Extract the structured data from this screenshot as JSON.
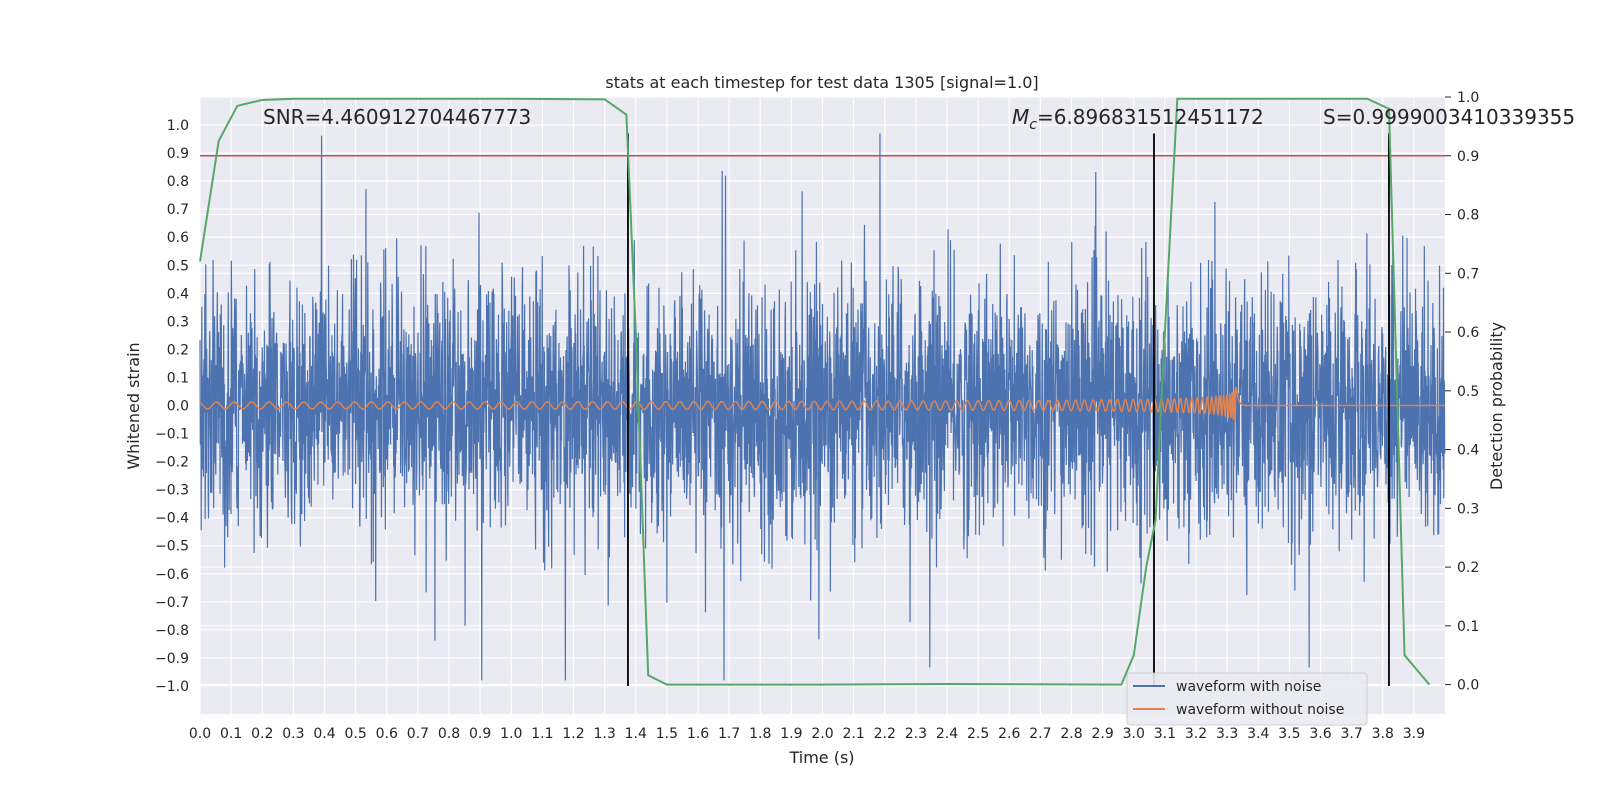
{
  "chart_data": {
    "type": "line",
    "title": "stats at each timestep for test data 1305 [signal=1.0]",
    "xlabel": "Time (s)",
    "ylabel": "Whitened strain",
    "y2label": "Detection probability",
    "xlim": [
      0.0,
      4.0
    ],
    "ylim": [
      -1.1,
      1.1
    ],
    "y2lim": [
      -0.05,
      1.0
    ],
    "x_ticks": [
      "0.0",
      "0.1",
      "0.2",
      "0.3",
      "0.4",
      "0.5",
      "0.6",
      "0.7",
      "0.8",
      "0.9",
      "1.0",
      "1.1",
      "1.2",
      "1.3",
      "1.4",
      "1.5",
      "1.6",
      "1.7",
      "1.8",
      "1.9",
      "2.0",
      "2.1",
      "2.2",
      "2.3",
      "2.4",
      "2.5",
      "2.6",
      "2.7",
      "2.8",
      "2.9",
      "3.0",
      "3.1",
      "3.2",
      "3.3",
      "3.4",
      "3.5",
      "3.6",
      "3.7",
      "3.8",
      "3.9"
    ],
    "y_ticks": [
      "1.0",
      "0.9",
      "0.8",
      "0.7",
      "0.6",
      "0.5",
      "0.4",
      "0.3",
      "0.2",
      "0.1",
      "0.0",
      "−0.1",
      "−0.2",
      "−0.3",
      "−0.4",
      "−0.5",
      "−0.6",
      "−0.7",
      "−0.8",
      "−0.9",
      "−1.0"
    ],
    "y2_ticks": [
      "1.0",
      "0.9",
      "0.8",
      "0.7",
      "0.6",
      "0.5",
      "0.4",
      "0.3",
      "0.2",
      "0.1",
      "0.0"
    ],
    "annotations": {
      "snr": "SNR=4.460912704467773",
      "mc_symbol": "M",
      "mc_sub": "c",
      "mc_value": "=6.896831512451172",
      "s": "S=0.9999003410339355"
    },
    "threshold": 0.9,
    "vlines": [
      1.375,
      3.065,
      3.82
    ],
    "series": [
      {
        "name": "waveform with noise",
        "color": "#4c72b0",
        "kind": "noise",
        "amplitude": 0.45
      },
      {
        "name": "waveform without noise",
        "color": "#dd8452",
        "kind": "chirp",
        "t_merger": 3.33,
        "peak": 0.14
      },
      {
        "name": "detection probability",
        "color": "#55a868",
        "kind": "probability",
        "x": [
          0.0,
          0.06,
          0.12,
          0.2,
          0.3,
          0.6,
          1.0,
          1.3,
          1.37,
          1.4,
          1.44,
          1.5,
          2.0,
          2.4,
          2.96,
          3.0,
          3.04,
          3.07,
          3.1,
          3.14,
          3.5,
          3.75,
          3.82,
          3.87,
          3.95
        ],
        "y": [
          0.72,
          0.925,
          0.985,
          0.995,
          0.997,
          0.997,
          0.997,
          0.996,
          0.97,
          0.6,
          0.016,
          0.0,
          0.0,
          0.001,
          0.0,
          0.05,
          0.2,
          0.28,
          0.6,
          0.997,
          0.997,
          0.997,
          0.98,
          0.05,
          0.0
        ]
      }
    ],
    "legend": [
      "waveform with noise",
      "waveform without noise"
    ],
    "legend_position": "lower-right",
    "colors": {
      "background": "#eaeaf2",
      "grid": "#ffffff",
      "threshold": "#c44e52",
      "vline": "#000000"
    }
  }
}
